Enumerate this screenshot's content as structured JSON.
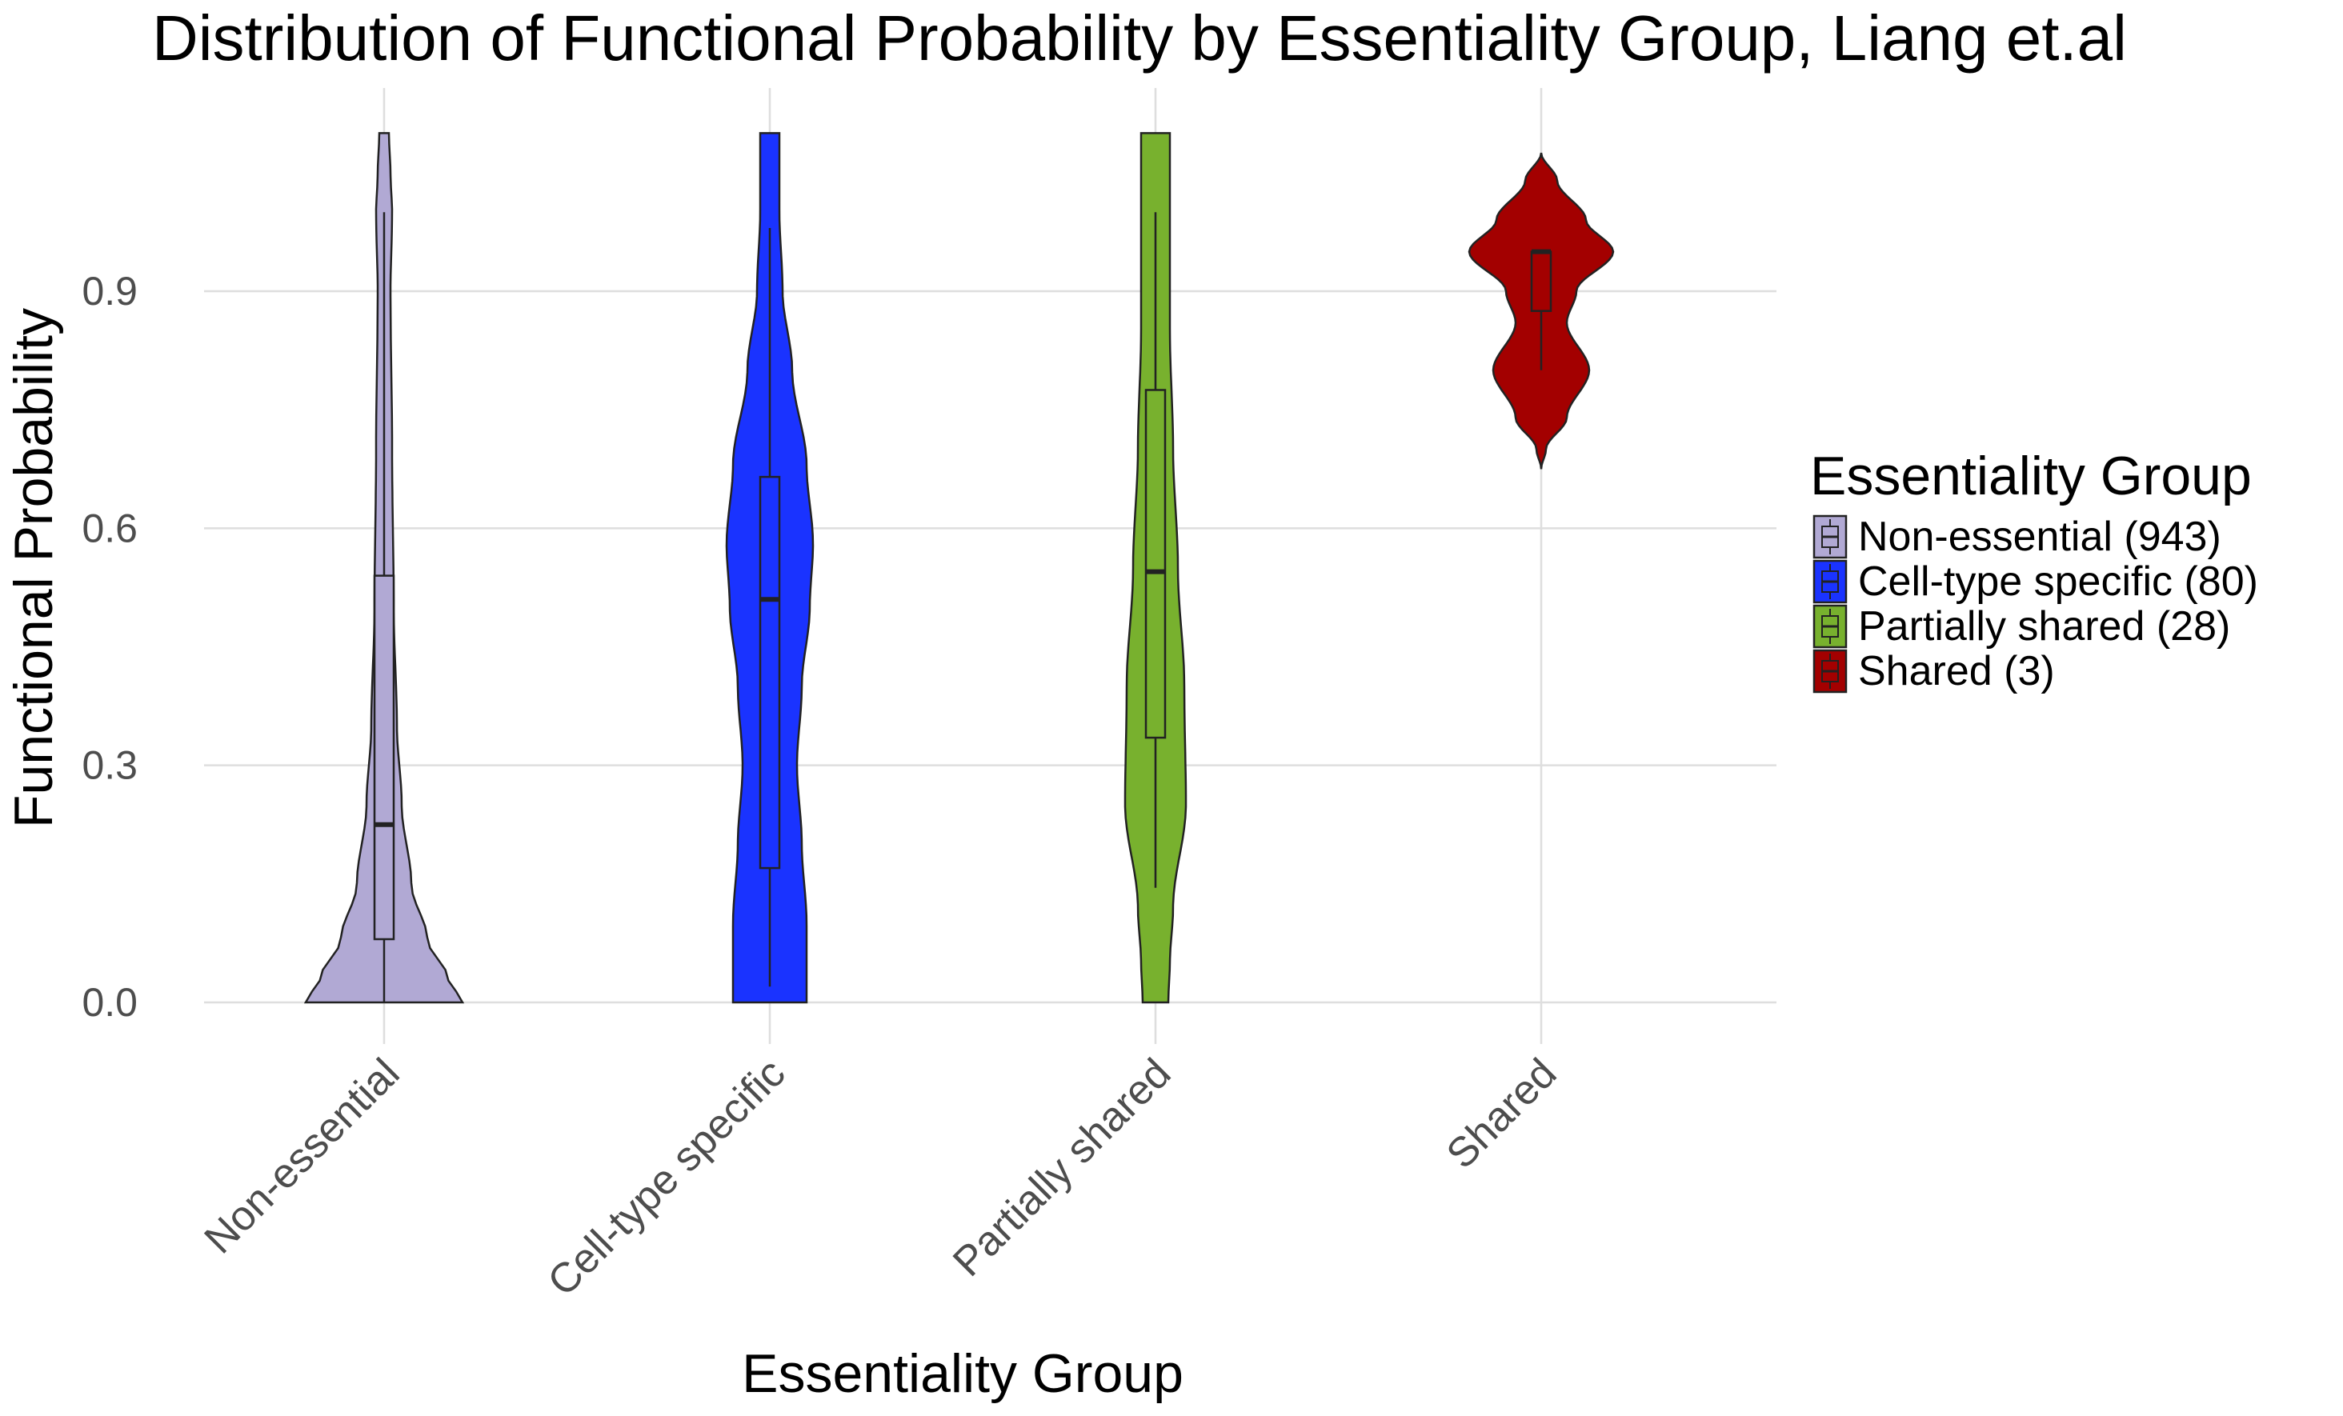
{
  "chart_data": {
    "type": "violin",
    "title": "Distribution of Functional Probability by Essentiality Group, Liang et.al",
    "xlabel": "Essentiality Group",
    "ylabel": "Functional Probability",
    "ylim": [
      -0.05,
      1.15
    ],
    "yticks": [
      0.0,
      0.3,
      0.6,
      0.9
    ],
    "ytick_labels": [
      "0.0",
      "0.3",
      "0.6",
      "0.9"
    ],
    "grid": true,
    "legend_title": "Essentiality Group",
    "legend_position": "right",
    "categories": [
      "Non-essential",
      "Cell-type specific",
      "Partially shared",
      "Shared"
    ],
    "series": [
      {
        "name": "Non-essential",
        "legend_label": "Non-essential (943)",
        "color": "#b1a9d4",
        "violin_range": [
          0.0,
          1.1
        ],
        "density_profile": [
          [
            0.0,
            0.49
          ],
          [
            0.03,
            0.4
          ],
          [
            0.08,
            0.27
          ],
          [
            0.15,
            0.17
          ],
          [
            0.25,
            0.11
          ],
          [
            0.35,
            0.08
          ],
          [
            0.5,
            0.06
          ],
          [
            0.7,
            0.05
          ],
          [
            0.9,
            0.04
          ],
          [
            1.0,
            0.05
          ],
          [
            1.05,
            0.04
          ],
          [
            1.1,
            0.03
          ]
        ],
        "box": {
          "whisker_low": 0.0,
          "q1": 0.08,
          "median": 0.225,
          "q3": 0.54,
          "whisker_high": 1.0
        }
      },
      {
        "name": "Cell-type specific",
        "legend_label": "Cell-type specific (80)",
        "color": "#1a33ff",
        "violin_range": [
          0.0,
          1.1
        ],
        "density_profile": [
          [
            0.0,
            0.23
          ],
          [
            0.1,
            0.23
          ],
          [
            0.2,
            0.2
          ],
          [
            0.3,
            0.17
          ],
          [
            0.4,
            0.2
          ],
          [
            0.5,
            0.25
          ],
          [
            0.58,
            0.27
          ],
          [
            0.68,
            0.23
          ],
          [
            0.8,
            0.14
          ],
          [
            0.9,
            0.08
          ],
          [
            1.0,
            0.06
          ],
          [
            1.1,
            0.06
          ]
        ],
        "box": {
          "whisker_low": 0.02,
          "q1": 0.17,
          "median": 0.51,
          "q3": 0.665,
          "whisker_high": 0.98
        }
      },
      {
        "name": "Partially shared",
        "legend_label": "Partially shared (28)",
        "color": "#78b12e",
        "violin_range": [
          0.0,
          1.1
        ],
        "density_profile": [
          [
            0.0,
            0.08
          ],
          [
            0.05,
            0.09
          ],
          [
            0.12,
            0.11
          ],
          [
            0.25,
            0.19
          ],
          [
            0.4,
            0.18
          ],
          [
            0.55,
            0.14
          ],
          [
            0.7,
            0.11
          ],
          [
            0.85,
            0.09
          ],
          [
            0.95,
            0.09
          ],
          [
            1.05,
            0.09
          ],
          [
            1.1,
            0.09
          ]
        ],
        "box": {
          "whisker_low": 0.145,
          "q1": 0.335,
          "median": 0.545,
          "q3": 0.775,
          "whisker_high": 1.0
        }
      },
      {
        "name": "Shared",
        "legend_label": "Shared (3)",
        "color": "#a30000",
        "violin_range": [
          0.675,
          1.075
        ],
        "density_profile": [
          [
            0.675,
            0.0
          ],
          [
            0.7,
            0.03
          ],
          [
            0.74,
            0.16
          ],
          [
            0.8,
            0.3
          ],
          [
            0.86,
            0.16
          ],
          [
            0.9,
            0.22
          ],
          [
            0.95,
            0.45
          ],
          [
            0.99,
            0.28
          ],
          [
            1.04,
            0.1
          ],
          [
            1.075,
            0.0
          ]
        ],
        "box": {
          "whisker_low": 0.8,
          "q1": 0.875,
          "median": 0.95,
          "q3": 0.95,
          "whisker_high": 0.95
        }
      }
    ]
  }
}
